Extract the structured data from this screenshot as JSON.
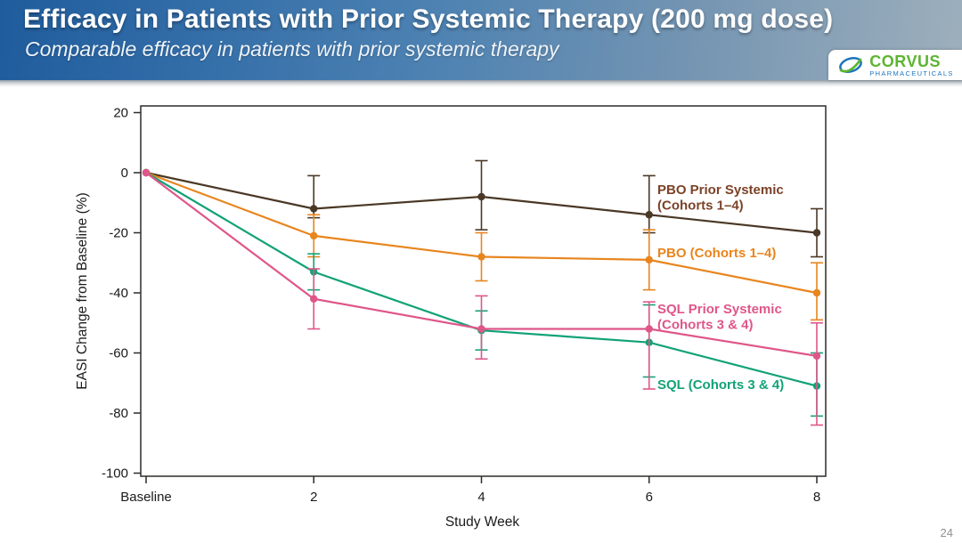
{
  "header": {
    "title": "Efficacy in Patients with Prior Systemic Therapy (200 mg dose)",
    "subtitle": "Comparable efficacy in patients with prior systemic therapy",
    "logo": {
      "name": "CORVUS",
      "tagline": "PHARMACEUTICALS",
      "icon": "corvus-swoosh",
      "name_color": "#5cb531",
      "tagline_color": "#1b75bb"
    }
  },
  "footer": {
    "page_number": "24"
  },
  "chart_data": {
    "type": "line",
    "title": "",
    "xlabel": "Study Week",
    "ylabel": "EASI Change from Baseline (%)",
    "x_categories": [
      "Baseline",
      "2",
      "4",
      "6",
      "8"
    ],
    "ylim": [
      -100,
      20
    ],
    "yticks": [
      20,
      0,
      -20,
      -40,
      -60,
      -80,
      -100
    ],
    "grid": false,
    "legend_position": "inside-right",
    "error_bars": true,
    "axis_color": "#2e2b28",
    "tick_label_color": "#1a1a1a",
    "series": [
      {
        "name": "PBO Prior Systemic (Cohorts 1–4)",
        "label_lines": [
          "PBO Prior Systemic",
          "(Cohorts 1–4)"
        ],
        "color": "#4a3826",
        "label_color": "#7b4227",
        "values": [
          0,
          -12,
          -8,
          -14,
          -20
        ],
        "ci": [
          null,
          [
            -15,
            -1
          ],
          [
            -19,
            4
          ],
          [
            -20,
            -1
          ],
          [
            -28,
            -12
          ]
        ]
      },
      {
        "name": "PBO (Cohorts 1–4)",
        "label_lines": [
          "PBO (Cohorts 1–4)"
        ],
        "color": "#e8851d",
        "label_color": "#e8851d",
        "values": [
          0,
          -21,
          -28,
          -29,
          -40
        ],
        "ci": [
          null,
          [
            -28,
            -14
          ],
          [
            -36,
            -20
          ],
          [
            -39,
            -19
          ],
          [
            -49,
            -30
          ]
        ]
      },
      {
        "name": "SQL Prior Systemic (Cohorts 3 & 4)",
        "label_lines": [
          "SQL Prior Systemic",
          "(Cohorts 3 & 4)"
        ],
        "color": "#df5689",
        "label_color": "#df5689",
        "values": [
          0,
          -42,
          -52,
          -52,
          -61
        ],
        "ci": [
          null,
          [
            -52,
            -32
          ],
          [
            -62,
            -41
          ],
          [
            -72,
            -43
          ],
          [
            -84,
            -50
          ]
        ]
      },
      {
        "name": "SQL (Cohorts 3 & 4)",
        "label_lines": [
          "SQL (Cohorts 3 & 4)"
        ],
        "color": "#13a277",
        "label_color": "#13a277",
        "values": [
          0,
          -33,
          -52.5,
          -56.5,
          -71
        ],
        "ci": [
          null,
          [
            -39,
            -27
          ],
          [
            -59,
            -46
          ],
          [
            -68,
            -44
          ],
          [
            -81,
            -60
          ]
        ]
      }
    ]
  }
}
